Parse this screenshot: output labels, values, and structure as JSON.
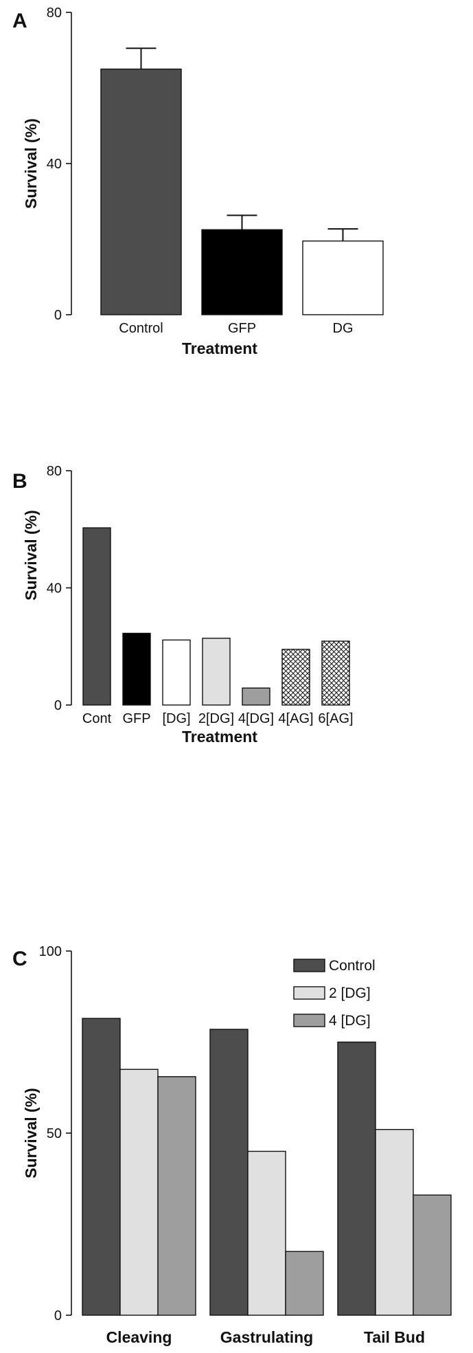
{
  "chart_data": [
    {
      "panel": "A",
      "type": "bar",
      "categories": [
        "Control",
        "GFP",
        "DG"
      ],
      "values": [
        65,
        22.5,
        19.5
      ],
      "errors": [
        5.5,
        3.8,
        3.2
      ],
      "fills": [
        "#4d4d4d",
        "#000000",
        "#ffffff"
      ],
      "xlabel": "Treatment",
      "ylabel": "Survival (%)",
      "ylim": [
        0,
        80
      ],
      "yticks": [
        0,
        40,
        80
      ]
    },
    {
      "panel": "B",
      "type": "bar",
      "categories": [
        "Cont",
        "GFP",
        "[DG]",
        "2[DG]",
        "4[DG]",
        "4[AG]",
        "6[AG]"
      ],
      "values": [
        60.5,
        24.5,
        22.2,
        22.8,
        5.8,
        19.0,
        21.8
      ],
      "fills": [
        "#4d4d4d",
        "#000000",
        "#ffffff",
        "#e0e0e0",
        "#9e9e9e",
        "crosshatch",
        "crosshatch"
      ],
      "xlabel": "Treatment",
      "ylabel": "Survival (%)",
      "ylim": [
        0,
        80
      ],
      "yticks": [
        0,
        40,
        80
      ]
    },
    {
      "panel": "C",
      "type": "bar",
      "categories": [
        "Cleaving",
        "Gastrulating",
        "Tail Bud"
      ],
      "series": [
        {
          "name": "Control",
          "values": [
            81.5,
            78.5,
            75.0
          ],
          "color": "#4d4d4d"
        },
        {
          "name": "2 [DG]",
          "values": [
            67.5,
            45.0,
            51.0
          ],
          "color": "#e0e0e0"
        },
        {
          "name": "4 [DG]",
          "values": [
            65.5,
            17.5,
            33.0
          ],
          "color": "#9e9e9e"
        }
      ],
      "xlabel": "",
      "ylabel": "Survival (%)",
      "ylim": [
        0,
        100
      ],
      "yticks": [
        0,
        50,
        100
      ],
      "legend": "top-right"
    }
  ]
}
